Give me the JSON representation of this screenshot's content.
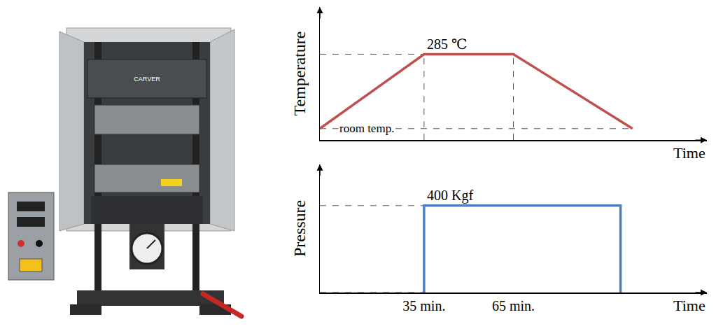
{
  "photo": {
    "label": "CARVER"
  },
  "chart_data": [
    {
      "type": "line",
      "y_title": "Temperature",
      "x_title": "Time",
      "x": [
        0,
        35,
        65,
        105
      ],
      "values": [
        25,
        285,
        285,
        25
      ],
      "color": "#c0504d",
      "xlim": [
        0,
        130
      ],
      "ylim": [
        -15,
        450
      ],
      "grid": false,
      "tick_labels": false,
      "annotations": [
        {
          "text": "285 ℃",
          "x": 35,
          "y": 285
        },
        {
          "text": "room temp.",
          "x": 6,
          "y": 25
        }
      ]
    },
    {
      "type": "line",
      "y_title": "Pressure",
      "x_title": "Time",
      "x": [
        35,
        35,
        101,
        101
      ],
      "values": [
        0,
        400,
        400,
        0
      ],
      "color": "#4f81bd",
      "xlim": [
        0,
        130
      ],
      "ylim": [
        0,
        590
      ],
      "grid": false,
      "tick_labels": "x",
      "xticks": [
        {
          "value": 35,
          "label": "35 min."
        },
        {
          "value": 65,
          "label": "65 min."
        }
      ],
      "annotations": [
        {
          "text": "400 Kgf",
          "x": 35,
          "y": 400
        }
      ]
    }
  ]
}
